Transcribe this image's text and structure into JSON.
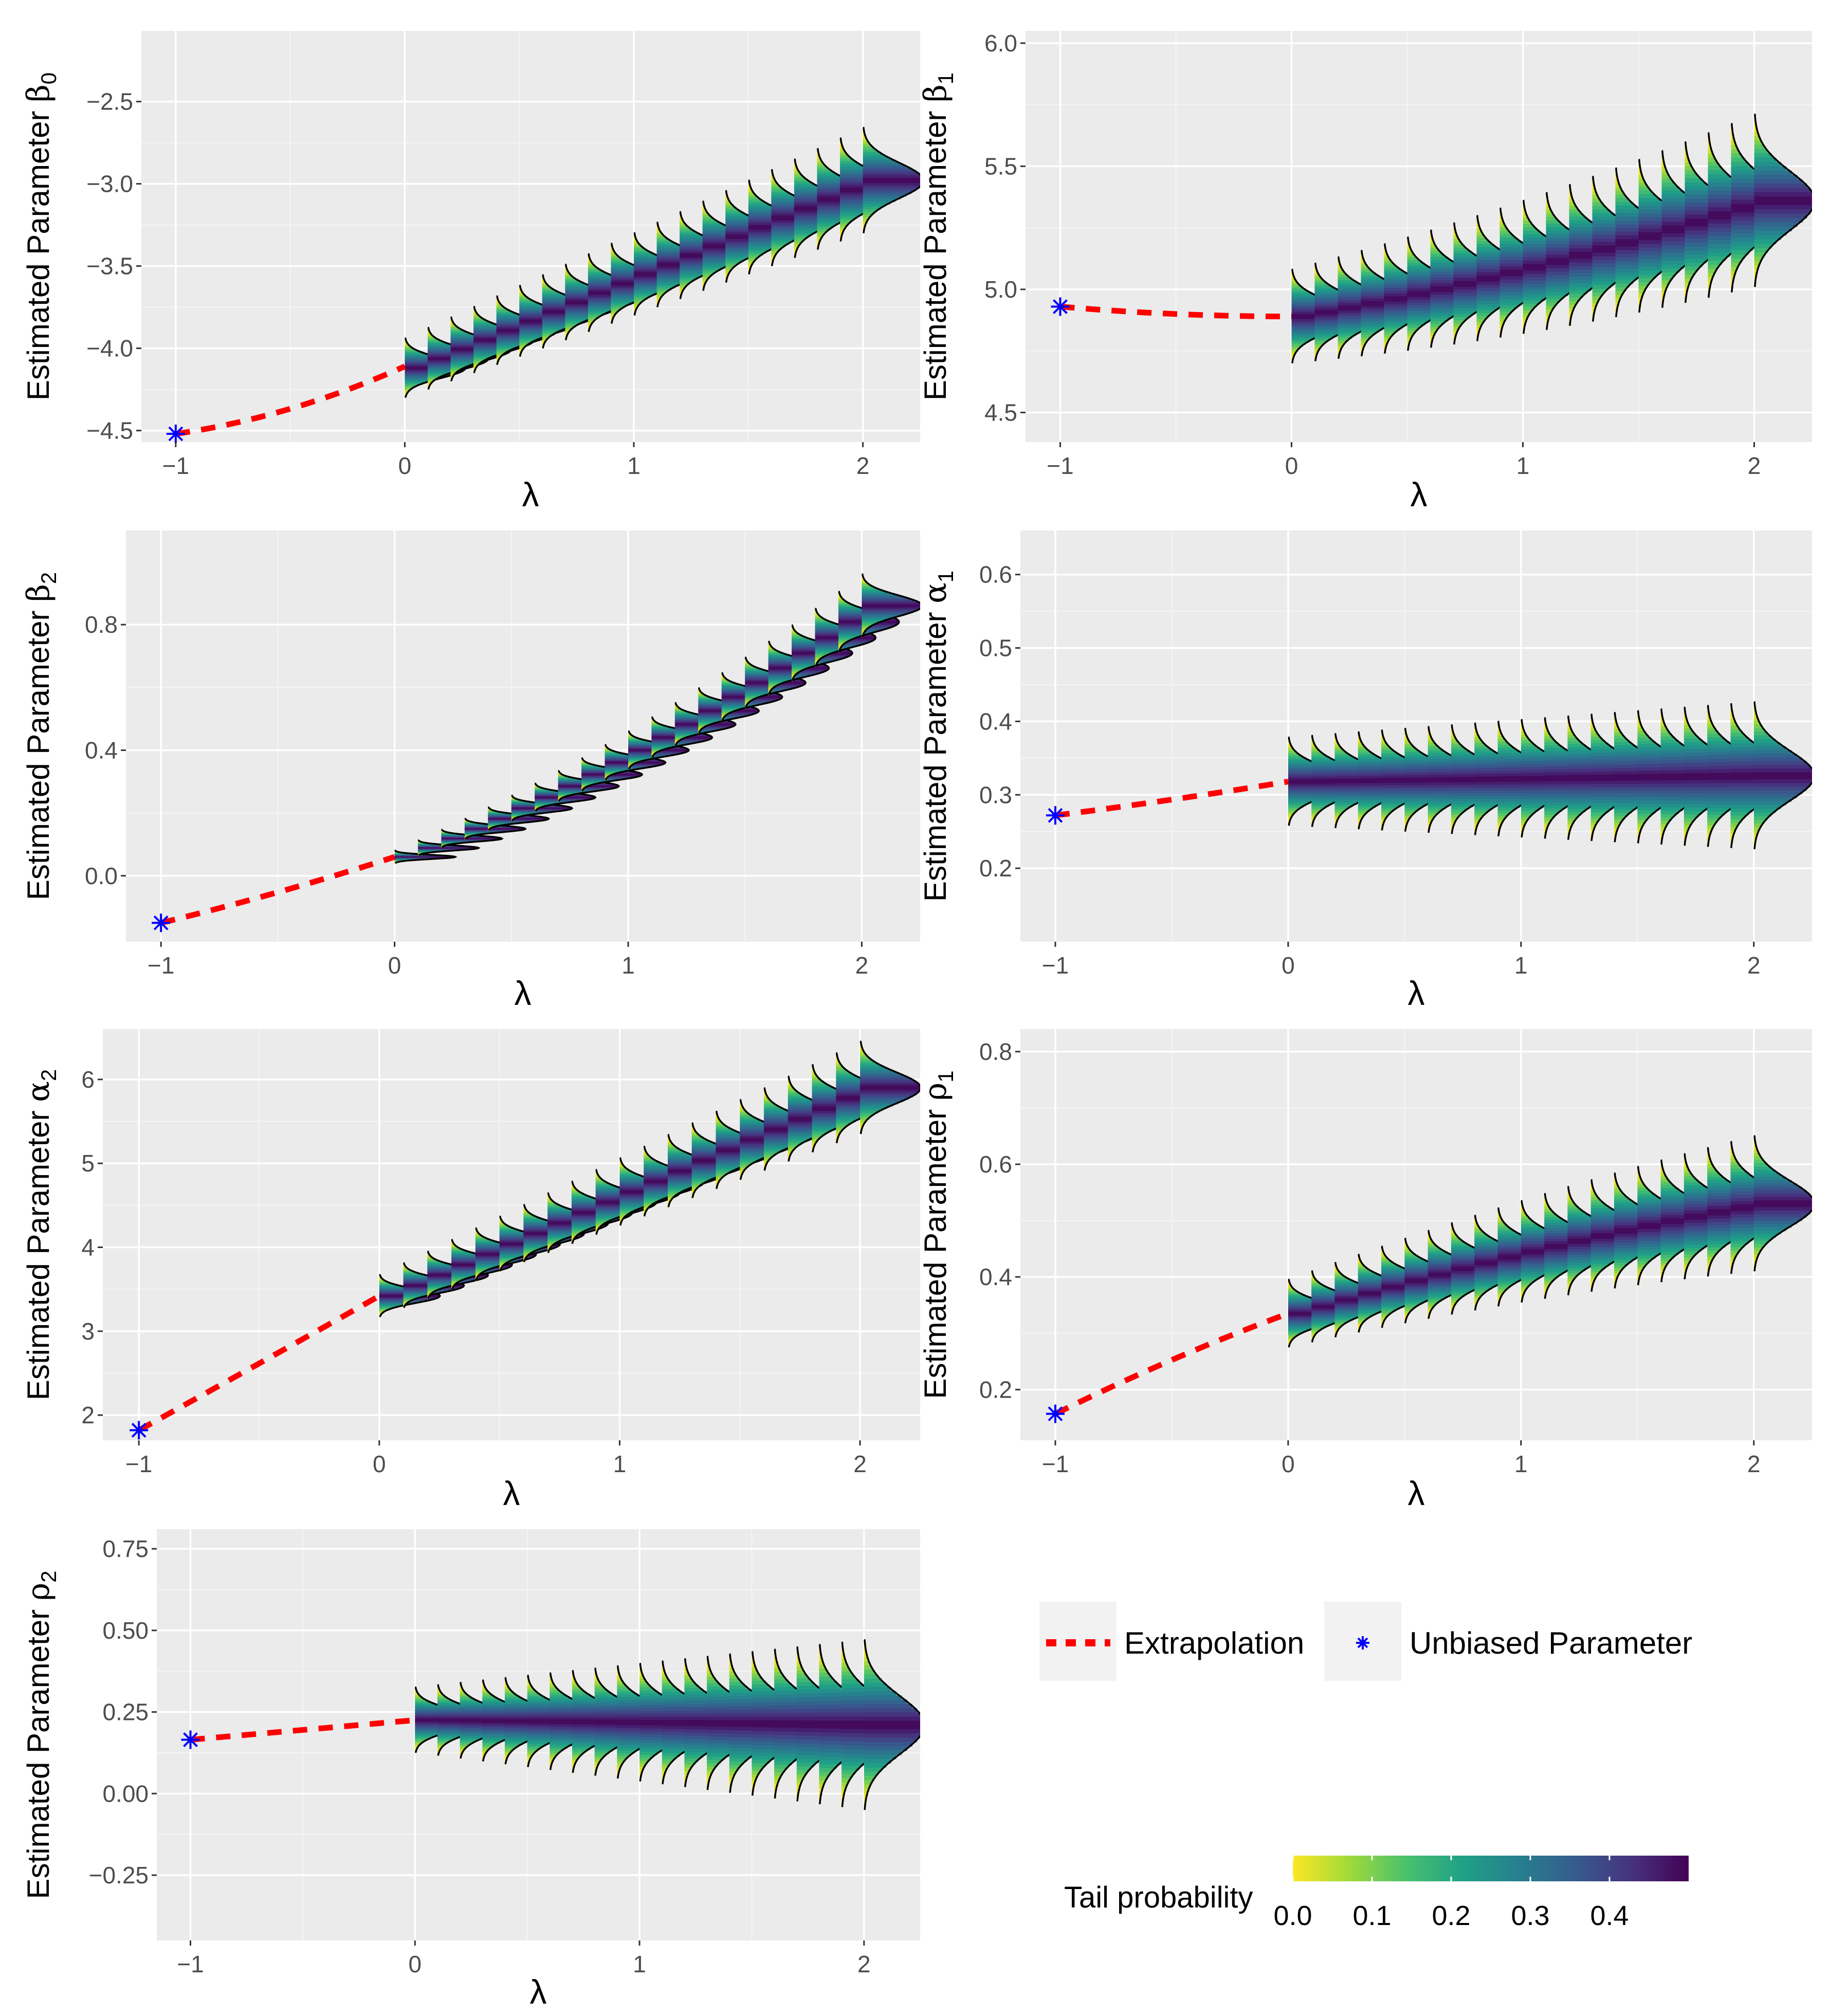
{
  "figure": {
    "colors": {
      "panel_bg": "#ebebeb",
      "grid_major": "#ffffff",
      "extrapolation": "#ff0000",
      "unbiased_marker": "#0000ff",
      "ridge_outline": "#000000",
      "viridis": [
        "#fde725",
        "#a0da39",
        "#4ac16d",
        "#1fa187",
        "#277f8e",
        "#365c8d",
        "#46327e",
        "#440154"
      ]
    },
    "legend": {
      "extrapolation_label": "Extrapolation",
      "unbiased_label": "Unbiased Parameter",
      "tail_title": "Tail probability",
      "tail_ticks": [
        "0.0",
        "0.1",
        "0.2",
        "0.3",
        "0.4"
      ],
      "tail_range": [
        0,
        0.5
      ]
    }
  },
  "chart_data": [
    {
      "id": "beta0",
      "type": "ridgeline",
      "ylabel_prefix": "Estimated Parameter ",
      "ylabel_symbol": "β",
      "ylabel_sub": "0",
      "xlabel": "λ",
      "xlim": [
        -1.15,
        2.25
      ],
      "ylim": [
        -4.57,
        -2.07
      ],
      "xticks": [
        -1,
        0,
        1,
        2
      ],
      "xtick_labels": [
        "−1",
        "0",
        "1",
        "2"
      ],
      "yticks": [
        -4.5,
        -4.0,
        -3.5,
        -3.0,
        -2.5
      ],
      "ytick_labels": [
        "−4.5",
        "−4.0",
        "−3.5",
        "−3.0",
        "−2.5"
      ],
      "unbiased": {
        "x": -1,
        "y": -4.52
      },
      "extrapolation_curve": {
        "x": [
          -1,
          0
        ],
        "a": -4.11,
        "b": 0.62,
        "c": 0.21
      },
      "ridges": {
        "lambda_start": 0,
        "lambda_end": 2,
        "count": 21,
        "center_start": -4.12,
        "center_end": -2.98,
        "curvature": 0,
        "half_width_start": 0.18,
        "half_width_end": 0.32
      }
    },
    {
      "id": "beta1",
      "type": "ridgeline",
      "ylabel_prefix": "Estimated Parameter ",
      "ylabel_symbol": "β",
      "ylabel_sub": "1",
      "xlabel": "λ",
      "xlim": [
        -1.15,
        2.25
      ],
      "ylim": [
        4.38,
        6.05
      ],
      "xticks": [
        -1,
        0,
        1,
        2
      ],
      "xtick_labels": [
        "−1",
        "0",
        "1",
        "2"
      ],
      "yticks": [
        4.5,
        5.0,
        5.5,
        6.0
      ],
      "ytick_labels": [
        "4.5",
        "5.0",
        "5.5",
        "6.0"
      ],
      "unbiased": {
        "x": -1,
        "y": 4.93
      },
      "extrapolation_curve": {
        "x": [
          -1,
          0
        ],
        "a": 4.89,
        "b": 0.0,
        "c": 0.04
      },
      "ridges": {
        "lambda_start": 0,
        "lambda_end": 2,
        "count": 21,
        "center_start": 4.89,
        "center_end": 5.36,
        "curvature": 0.6,
        "half_width_start": 0.19,
        "half_width_end": 0.35
      }
    },
    {
      "id": "beta2",
      "type": "ridgeline",
      "ylabel_prefix": "Estimated Parameter ",
      "ylabel_symbol": "β",
      "ylabel_sub": "2",
      "xlabel": "λ",
      "xlim": [
        -1.15,
        2.25
      ],
      "ylim": [
        -0.21,
        1.1
      ],
      "xticks": [
        -1,
        0,
        1,
        2
      ],
      "xtick_labels": [
        "−1",
        "0",
        "1",
        "2"
      ],
      "yticks": [
        0.0,
        0.4,
        0.8
      ],
      "ytick_labels": [
        "0.0",
        "0.4",
        "0.8"
      ],
      "unbiased": {
        "x": -1,
        "y": -0.15
      },
      "extrapolation_curve": {
        "x": [
          -1,
          0
        ],
        "a": 0.06,
        "b": 0.24,
        "c": 0.03
      },
      "ridges": {
        "lambda_start": 0,
        "lambda_end": 2,
        "count": 21,
        "center_start": 0.06,
        "center_end": 0.86,
        "curvature": 0.6,
        "half_width_start": 0.02,
        "half_width_end": 0.1
      }
    },
    {
      "id": "alpha1",
      "type": "ridgeline",
      "ylabel_prefix": "Estimated Parameter ",
      "ylabel_symbol": "α",
      "ylabel_sub": "1",
      "xlabel": "λ",
      "xlim": [
        -1.15,
        2.25
      ],
      "ylim": [
        0.1,
        0.66
      ],
      "xticks": [
        -1,
        0,
        1,
        2
      ],
      "xtick_labels": [
        "−1",
        "0",
        "1",
        "2"
      ],
      "yticks": [
        0.2,
        0.3,
        0.4,
        0.5,
        0.6
      ],
      "ytick_labels": [
        "0.2",
        "0.3",
        "0.4",
        "0.5",
        "0.6"
      ],
      "unbiased": {
        "x": -1,
        "y": 0.272
      },
      "extrapolation_curve": {
        "x": [
          -1,
          0
        ],
        "a": 0.318,
        "b": 0.052,
        "c": 0.006
      },
      "ridges": {
        "lambda_start": 0,
        "lambda_end": 2,
        "count": 21,
        "center_start": 0.318,
        "center_end": 0.326,
        "curvature": 0,
        "half_width_start": 0.06,
        "half_width_end": 0.1
      }
    },
    {
      "id": "alpha2",
      "type": "ridgeline",
      "ylabel_prefix": "Estimated Parameter ",
      "ylabel_symbol": "α",
      "ylabel_sub": "2",
      "xlabel": "λ",
      "xlim": [
        -1.15,
        2.25
      ],
      "ylim": [
        1.7,
        6.6
      ],
      "xticks": [
        -1,
        0,
        1,
        2
      ],
      "xtick_labels": [
        "−1",
        "0",
        "1",
        "2"
      ],
      "yticks": [
        2,
        3,
        4,
        5,
        6
      ],
      "ytick_labels": [
        "2",
        "3",
        "4",
        "5",
        "6"
      ],
      "unbiased": {
        "x": -1,
        "y": 1.82
      },
      "extrapolation_curve": {
        "x": [
          -1,
          0
        ],
        "a": 3.42,
        "b": 1.62,
        "c": 0.02
      },
      "ridges": {
        "lambda_start": 0,
        "lambda_end": 2,
        "count": 21,
        "center_start": 3.42,
        "center_end": 5.9,
        "curvature": 0,
        "half_width_start": 0.25,
        "half_width_end": 0.55
      }
    },
    {
      "id": "rho1",
      "type": "ridgeline",
      "ylabel_prefix": "Estimated Parameter ",
      "ylabel_symbol": "ρ",
      "ylabel_sub": "1",
      "xlabel": "λ",
      "xlim": [
        -1.15,
        2.25
      ],
      "ylim": [
        0.11,
        0.84
      ],
      "xticks": [
        -1,
        0,
        1,
        2
      ],
      "xtick_labels": [
        "−1",
        "0",
        "1",
        "2"
      ],
      "yticks": [
        0.2,
        0.4,
        0.6,
        0.8
      ],
      "ytick_labels": [
        "0.2",
        "0.4",
        "0.6",
        "0.8"
      ],
      "unbiased": {
        "x": -1,
        "y": 0.157
      },
      "extrapolation_curve": {
        "x": [
          -1,
          0
        ],
        "a": 0.335,
        "b": 0.152,
        "c": -0.026
      },
      "ridges": {
        "lambda_start": 0,
        "lambda_end": 2,
        "count": 21,
        "center_start": 0.335,
        "center_end": 0.53,
        "curvature": -0.5,
        "half_width_start": 0.06,
        "half_width_end": 0.12
      }
    },
    {
      "id": "rho2",
      "type": "ridgeline",
      "ylabel_prefix": "Estimated Parameter ",
      "ylabel_symbol": "ρ",
      "ylabel_sub": "2",
      "xlabel": "λ",
      "xlim": [
        -1.15,
        2.25
      ],
      "ylim": [
        -0.45,
        0.81
      ],
      "xticks": [
        -1,
        0,
        1,
        2
      ],
      "xtick_labels": [
        "−1",
        "0",
        "1",
        "2"
      ],
      "yticks": [
        -0.25,
        0.0,
        0.25,
        0.5,
        0.75
      ],
      "ytick_labels": [
        "−0.25",
        "0.00",
        "0.25",
        "0.50",
        "0.75"
      ],
      "unbiased": {
        "x": -1,
        "y": 0.165
      },
      "extrapolation_curve": {
        "x": [
          -1,
          0
        ],
        "a": 0.225,
        "b": 0.06,
        "c": 0.0
      },
      "ridges": {
        "lambda_start": 0,
        "lambda_end": 2,
        "count": 21,
        "center_start": 0.225,
        "center_end": 0.21,
        "curvature": 0,
        "half_width_start": 0.1,
        "half_width_end": 0.26
      }
    }
  ]
}
